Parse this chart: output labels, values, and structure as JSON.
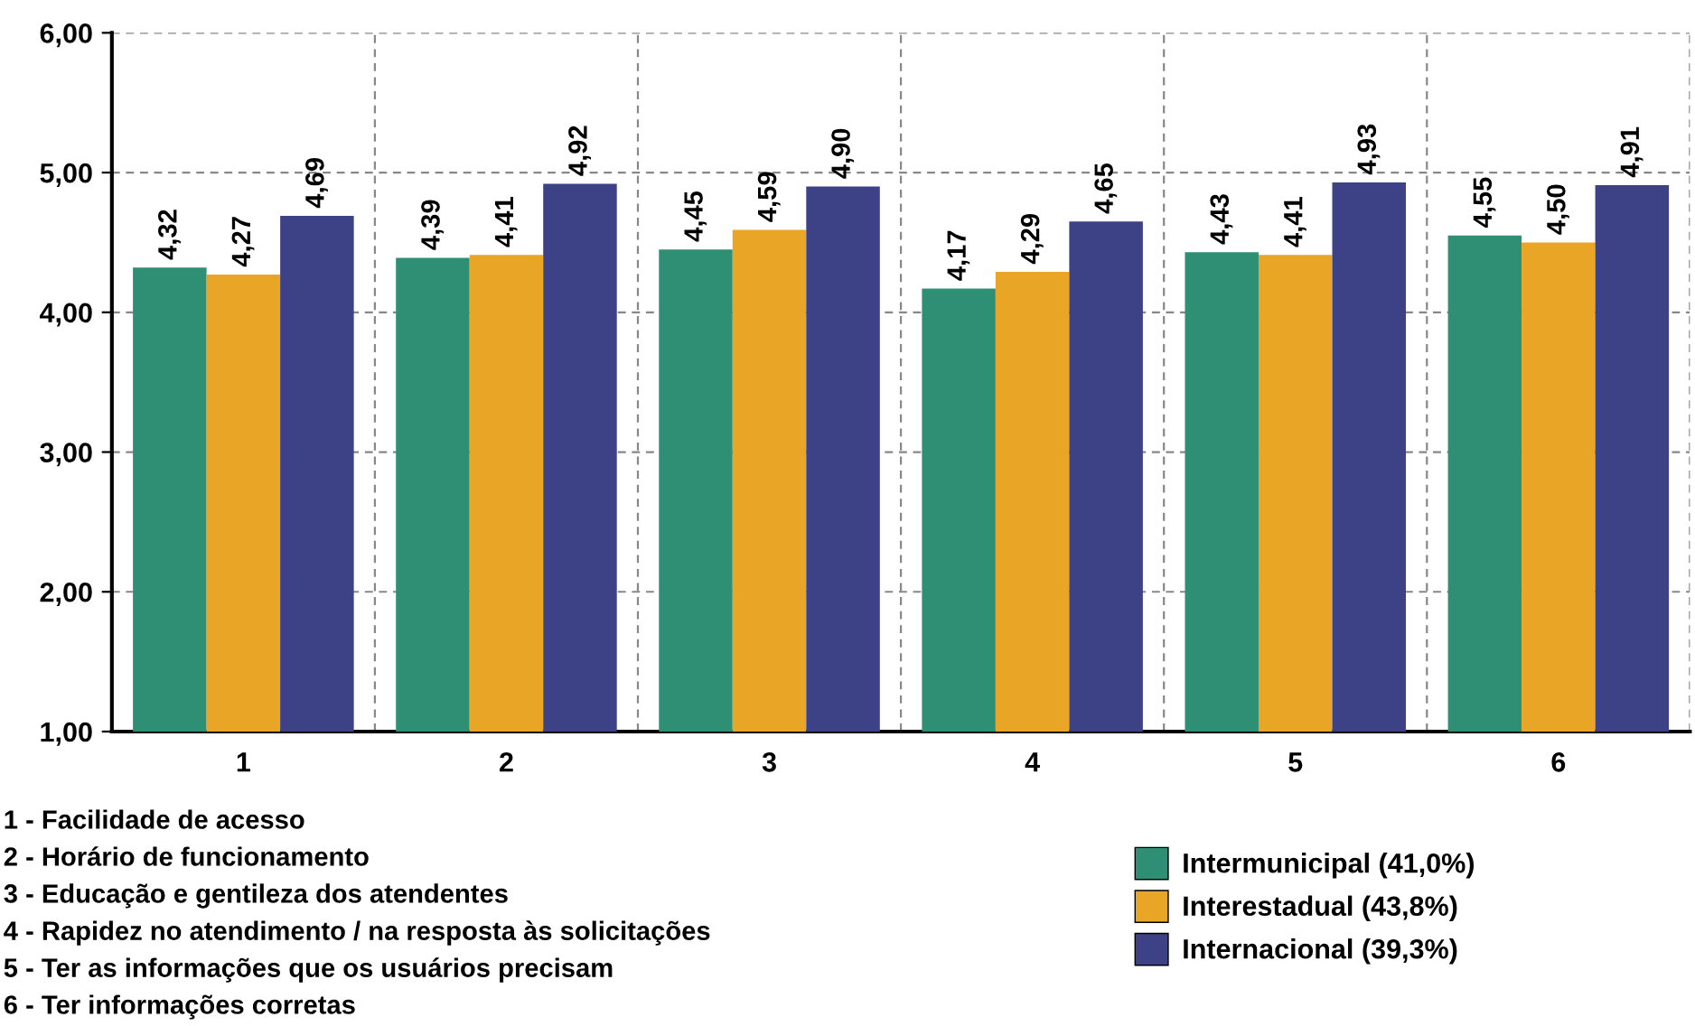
{
  "chart_data": {
    "type": "bar",
    "categories": [
      "1",
      "2",
      "3",
      "4",
      "5",
      "6"
    ],
    "series": [
      {
        "name": "Intermunicipal (41,0%)",
        "color": "#2e8f74",
        "values": [
          4.32,
          4.39,
          4.45,
          4.17,
          4.43,
          4.55
        ],
        "value_labels": [
          "4,32",
          "4,39",
          "4,45",
          "4,17",
          "4,43",
          "4,55"
        ]
      },
      {
        "name": "Interestadual (43,8%)",
        "color": "#e9a526",
        "values": [
          4.27,
          4.41,
          4.59,
          4.29,
          4.41,
          4.5
        ],
        "value_labels": [
          "4,27",
          "4,41",
          "4,59",
          "4,29",
          "4,41",
          "4,50"
        ]
      },
      {
        "name": "Internacional (39,3%)",
        "color": "#3d4185",
        "values": [
          4.69,
          4.92,
          4.9,
          4.65,
          4.93,
          4.91
        ],
        "value_labels": [
          "4,69",
          "4,92",
          "4,90",
          "4,65",
          "4,93",
          "4,91"
        ]
      }
    ],
    "ylim": [
      1,
      6
    ],
    "yticks": [
      {
        "value": 1,
        "label": "1,00"
      },
      {
        "value": 2,
        "label": "2,00"
      },
      {
        "value": 3,
        "label": "3,00"
      },
      {
        "value": 4,
        "label": "4,00"
      },
      {
        "value": 5,
        "label": "5,00"
      },
      {
        "value": 6,
        "label": "6,00"
      }
    ],
    "grid": true,
    "legend": "bottom right",
    "annotations": [
      "1 - Facilidade de acesso",
      "2 - Horário de funcionamento",
      "3 - Educação e gentileza dos atendentes",
      "4 - Rapidez no atendimento / na resposta às solicitações",
      "5 - Ter as informações que os usuários precisam",
      "6 - Ter informações corretas"
    ]
  }
}
